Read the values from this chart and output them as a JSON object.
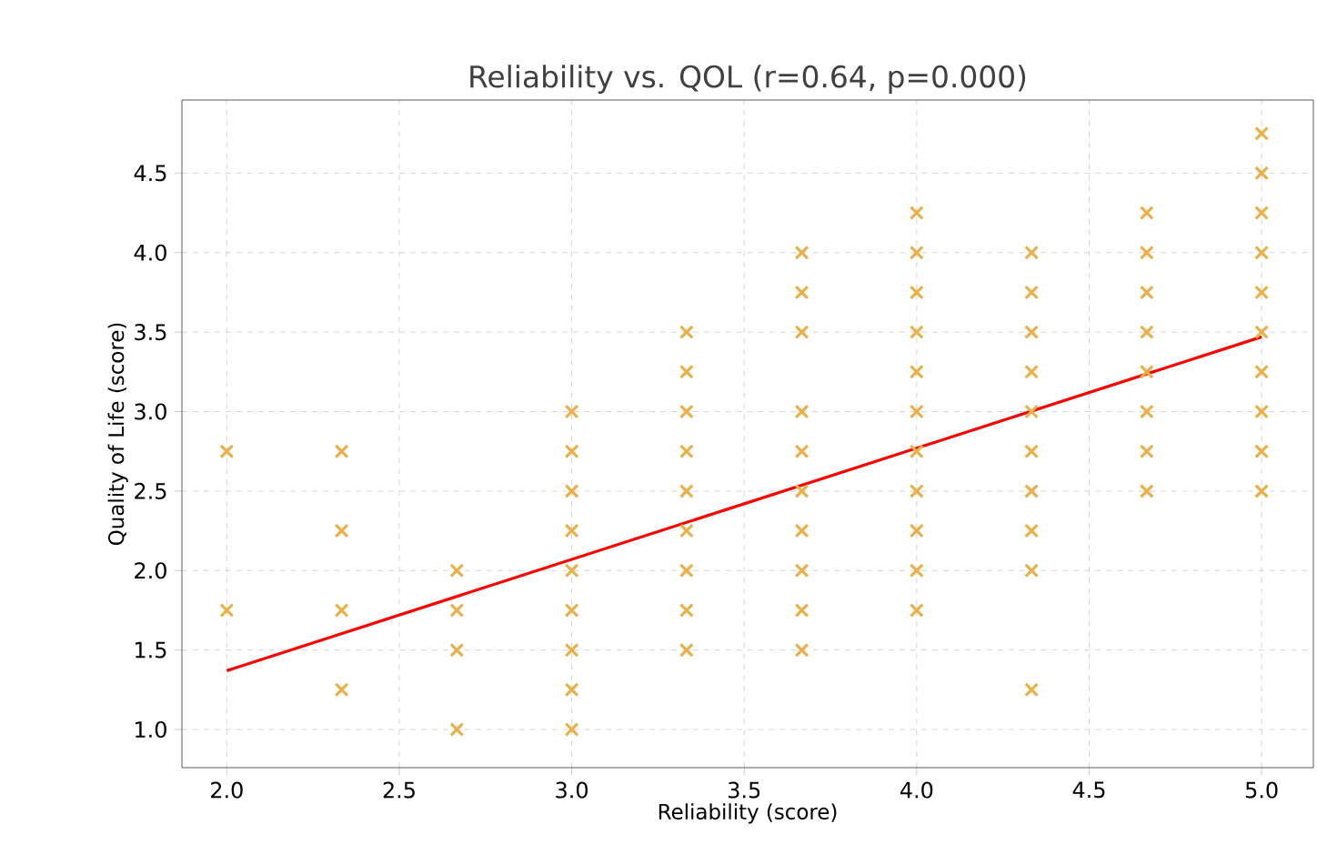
{
  "chart_data": {
    "type": "scatter",
    "title": "Reliability vs. QOL (r=0.64, p=0.000)",
    "xlabel": "Reliability (score)",
    "ylabel": "Quality of Life (score)",
    "xlim": [
      1.87,
      5.15
    ],
    "ylim": [
      0.76,
      4.96
    ],
    "xticks": [
      {
        "value": 2,
        "label": "2.0"
      },
      {
        "value": 2.5,
        "label": "2.5"
      },
      {
        "value": 3,
        "label": "3.0"
      },
      {
        "value": 3.5,
        "label": "3.5"
      },
      {
        "value": 4,
        "label": "4.0"
      },
      {
        "value": 4.5,
        "label": "4.5"
      },
      {
        "value": 5,
        "label": "5.0"
      }
    ],
    "yticks": [
      {
        "value": 1,
        "label": "1.0"
      },
      {
        "value": 1.5,
        "label": "1.5"
      },
      {
        "value": 2,
        "label": "2.0"
      },
      {
        "value": 2.5,
        "label": "2.5"
      },
      {
        "value": 3,
        "label": "3.0"
      },
      {
        "value": 3.5,
        "label": "3.5"
      },
      {
        "value": 4,
        "label": "4.0"
      },
      {
        "value": 4.5,
        "label": "4.5"
      }
    ],
    "grid": true,
    "series": [
      {
        "marker": "cross",
        "color": "#eab04a",
        "x": [
          2,
          2,
          2.333,
          2.333,
          2.333,
          2.333,
          2.667,
          2.667,
          2.667,
          2.667,
          3,
          3,
          3,
          3,
          3,
          3,
          3,
          3,
          3,
          3.333,
          3.333,
          3.333,
          3.333,
          3.333,
          3.333,
          3.333,
          3.333,
          3.333,
          3.667,
          3.667,
          3.667,
          3.667,
          3.667,
          3.667,
          3.667,
          3.667,
          3.667,
          3.667,
          4,
          4,
          4,
          4,
          4,
          4,
          4,
          4,
          4,
          4,
          4,
          4.333,
          4.333,
          4.333,
          4.333,
          4.333,
          4.333,
          4.333,
          4.333,
          4.333,
          4.333,
          4.667,
          4.667,
          4.667,
          4.667,
          4.667,
          4.667,
          4.667,
          4.667,
          5,
          5,
          5,
          5,
          5,
          5,
          5,
          5,
          5,
          5
        ],
        "values": [
          2.75,
          1.75,
          2.75,
          2.25,
          1.75,
          1.25,
          2.0,
          1.75,
          1.5,
          1.0,
          3.0,
          2.75,
          2.5,
          2.25,
          2.0,
          1.75,
          1.5,
          1.25,
          1.0,
          3.5,
          3.25,
          3.0,
          2.75,
          2.5,
          2.25,
          2.0,
          1.75,
          1.5,
          4.0,
          3.75,
          3.5,
          3.0,
          2.75,
          2.5,
          2.25,
          2.0,
          1.75,
          1.5,
          4.25,
          4.0,
          3.75,
          3.5,
          3.25,
          3.0,
          2.75,
          2.5,
          2.25,
          2.0,
          1.75,
          4.0,
          3.75,
          3.5,
          3.25,
          3.0,
          2.75,
          2.5,
          2.25,
          2.0,
          1.25,
          4.25,
          4.0,
          3.75,
          3.5,
          3.25,
          3.0,
          2.75,
          2.5,
          4.75,
          4.5,
          4.25,
          4.0,
          3.75,
          3.5,
          3.25,
          3.0,
          2.75,
          2.5
        ]
      },
      {
        "type": "line",
        "marker": "none",
        "color": "#ff0000",
        "x": [
          2,
          5
        ],
        "values": [
          1.37,
          3.47
        ]
      }
    ]
  }
}
